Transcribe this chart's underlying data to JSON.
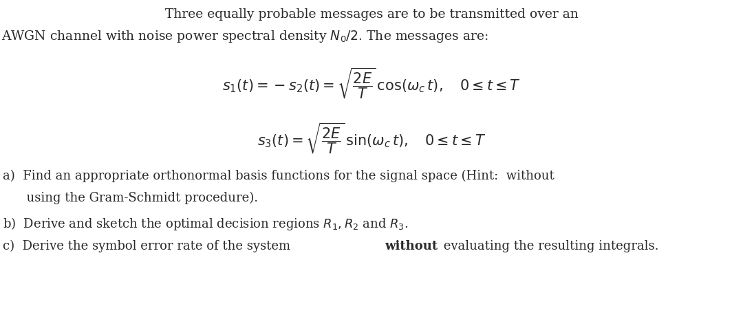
{
  "bg_color": "#ffffff",
  "text_color": "#2a2a2a",
  "figsize": [
    10.8,
    4.74
  ],
  "dpi": 100,
  "header_line1": "Three equally probable messages are to be transmitted over an",
  "header_line2": "AWGN channel with noise power spectral density $N_0/2$. The messages are:",
  "eq1": "$s_1(t) = -s_2(t) = \\sqrt{\\dfrac{2E}{T}}\\,\\cos(\\omega_c\\, t),\\quad 0 \\leq t \\leq T$",
  "eq2": "$s_3(t) = \\sqrt{\\dfrac{2E}{T}}\\,\\sin(\\omega_c\\, t),\\quad 0 \\leq t \\leq T$",
  "item_a_line1": "a)  Find an appropriate orthonormal basis functions for the signal space (Hint:  without",
  "item_a_line2": "      using the Gram-Schmidt procedure).",
  "item_b": "b)  Derive and sketch the optimal decision regions $R_1, R_2$ and $R_3$.",
  "item_c_pre": "c)  Derive the symbol error rate of the system ",
  "item_c_bold": "without",
  "item_c_post": " evaluating the resulting integrals.",
  "font_size_header": 13.5,
  "font_size_eq": 15,
  "font_size_items": 13.0
}
